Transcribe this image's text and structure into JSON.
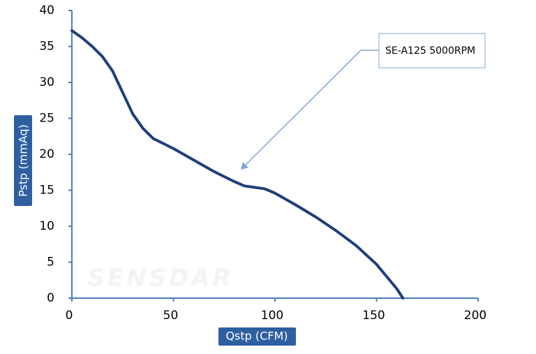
{
  "chart_data": {
    "type": "line",
    "watermark": "SENSDAR",
    "annotation": "SE-A125 5000RPM",
    "xlabel": "Qstp (CFM)",
    "ylabel": "Pstp (mmAq)",
    "x": [
      0,
      5,
      10,
      15,
      20,
      25,
      30,
      35,
      40,
      50,
      60,
      70,
      80,
      85,
      90,
      95,
      100,
      110,
      120,
      130,
      140,
      150,
      160,
      163
    ],
    "series": [
      {
        "name": "SE-A125 5000RPM",
        "color": "#1f3f7a",
        "values": [
          37.2,
          36.2,
          35,
          33.6,
          31.6,
          28.6,
          25.6,
          23.6,
          22.2,
          20.8,
          19.2,
          17.6,
          16.2,
          15.6,
          15.4,
          15.2,
          14.6,
          13,
          11.3,
          9.4,
          7.3,
          4.7,
          1.3,
          0
        ]
      }
    ],
    "xlim": [
      0,
      200
    ],
    "xticks": [
      0,
      50,
      100,
      150,
      200
    ],
    "ylim": [
      0,
      40
    ],
    "yticks": [
      0,
      5,
      10,
      15,
      20,
      25,
      30,
      35,
      40
    ],
    "axis_color": "#4a7ebb",
    "label_box_color": "#2e5fa1"
  }
}
